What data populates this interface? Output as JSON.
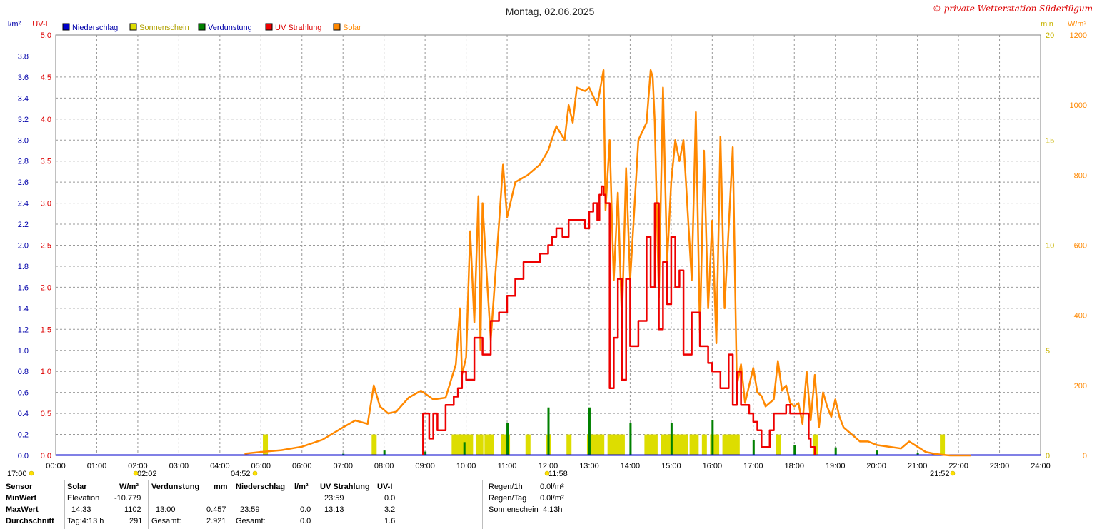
{
  "colors": {
    "niederschlag": "#0000cc",
    "sonnenschein": "#dddd00",
    "verdunstung": "#008000",
    "uv": "#ee0000",
    "solar": "#ff8800",
    "grid": "#999999",
    "copyright": "#dd0000"
  },
  "chart_data": {
    "type": "line",
    "title": "Montag, 02.06.2025",
    "copyright": "© private Wetterstation Süderlügum",
    "legend": [
      "Niederschlag",
      "Sonnenschein",
      "Verdunstung",
      "UV Strahlung",
      "Solar"
    ],
    "axes": {
      "left1_unit": "l/m²",
      "left2_unit": "UV-I",
      "right1_unit": "min",
      "right2_unit": "W/m²",
      "left1_ticks": [
        "0.0",
        "0.2",
        "0.4",
        "0.6",
        "0.8",
        "1.0",
        "1.2",
        "1.4",
        "1.6",
        "1.8",
        "2.0",
        "2.2",
        "2.4",
        "2.6",
        "2.8",
        "3.0",
        "3.2",
        "3.4",
        "3.6",
        "3.8"
      ],
      "left2_ticks": [
        "0.0",
        "0.5",
        "1.0",
        "1.5",
        "2.0",
        "2.5",
        "3.0",
        "3.5",
        "4.0",
        "4.5",
        "5.0"
      ],
      "right1_ticks": [
        "0",
        "5",
        "10",
        "15",
        "20"
      ],
      "right2_ticks": [
        "0",
        "200",
        "400",
        "600",
        "800",
        "1000",
        "1200"
      ],
      "x_ticks": [
        "00:00",
        "01:00",
        "02:00",
        "03:00",
        "04:00",
        "05:00",
        "06:00",
        "07:00",
        "08:00",
        "09:00",
        "10:00",
        "11:00",
        "12:00",
        "13:00",
        "14:00",
        "15:00",
        "16:00",
        "17:00",
        "18:00",
        "19:00",
        "20:00",
        "21:00",
        "22:00",
        "23:00",
        "24:00"
      ],
      "uv_ylim": [
        0,
        5
      ],
      "solar_ylim": [
        0,
        1200
      ],
      "sunshine_ylim": [
        0,
        20
      ],
      "rain_ylim": [
        0,
        4
      ]
    },
    "time_markers": [
      {
        "label": "17:00",
        "time": "00:00"
      },
      {
        "label": "02:02",
        "time": "02:02"
      },
      {
        "label": "04:52",
        "time": "04:52"
      },
      {
        "label": "11:58",
        "time": "11:58"
      },
      {
        "label": "21:52",
        "time": "21:52"
      }
    ],
    "solar": {
      "x": [
        4.6,
        5.0,
        5.5,
        6.0,
        6.5,
        7.0,
        7.3,
        7.6,
        7.75,
        7.9,
        8.1,
        8.3,
        8.6,
        8.9,
        9.2,
        9.5,
        9.75,
        9.85,
        9.9,
        10.0,
        10.1,
        10.2,
        10.3,
        10.35,
        10.4,
        10.5,
        10.6,
        10.8,
        10.9,
        11.0,
        11.2,
        11.5,
        11.8,
        12.0,
        12.2,
        12.4,
        12.5,
        12.6,
        12.7,
        12.9,
        13.0,
        13.2,
        13.35,
        13.4,
        13.5,
        13.6,
        13.7,
        13.8,
        13.9,
        14.0,
        14.2,
        14.4,
        14.5,
        14.55,
        14.6,
        14.7,
        14.8,
        14.9,
        15.0,
        15.1,
        15.2,
        15.3,
        15.5,
        15.6,
        15.7,
        15.8,
        15.9,
        16.0,
        16.1,
        16.2,
        16.3,
        16.5,
        16.6,
        16.7,
        16.8,
        17.0,
        17.1,
        17.2,
        17.3,
        17.5,
        17.6,
        17.7,
        17.8,
        17.9,
        18.0,
        18.1,
        18.2,
        18.3,
        18.4,
        18.5,
        18.6,
        18.7,
        18.8,
        18.9,
        19.0,
        19.1,
        19.2,
        19.4,
        19.6,
        19.8,
        20.0,
        20.3,
        20.6,
        20.8,
        21.0,
        21.2,
        21.4,
        21.6,
        21.8,
        22.0,
        22.3
      ],
      "y": [
        5,
        10,
        15,
        25,
        45,
        80,
        100,
        90,
        200,
        140,
        120,
        125,
        165,
        185,
        160,
        165,
        260,
        420,
        230,
        280,
        640,
        380,
        740,
        300,
        720,
        520,
        330,
        660,
        830,
        680,
        780,
        800,
        830,
        870,
        940,
        900,
        1000,
        950,
        1050,
        1040,
        1050,
        1000,
        1100,
        700,
        900,
        500,
        750,
        380,
        820,
        500,
        900,
        950,
        1100,
        1080,
        950,
        450,
        1050,
        550,
        780,
        900,
        840,
        900,
        500,
        980,
        350,
        870,
        420,
        670,
        320,
        910,
        420,
        880,
        200,
        260,
        150,
        250,
        180,
        170,
        140,
        160,
        270,
        185,
        200,
        150,
        140,
        150,
        90,
        240,
        100,
        230,
        80,
        180,
        140,
        110,
        160,
        110,
        80,
        60,
        40,
        40,
        30,
        25,
        20,
        40,
        25,
        10,
        5,
        2,
        0,
        0,
        0
      ],
      "ymax": 1102
    },
    "uv": {
      "x": [
        8.95,
        9.0,
        9.1,
        9.2,
        9.3,
        9.5,
        9.7,
        9.8,
        9.9,
        10.0,
        10.2,
        10.4,
        10.6,
        10.8,
        11.0,
        11.2,
        11.4,
        11.6,
        11.8,
        12.0,
        12.1,
        12.2,
        12.35,
        12.5,
        12.7,
        12.9,
        13.0,
        13.1,
        13.2,
        13.25,
        13.3,
        13.35,
        13.4,
        13.5,
        13.6,
        13.7,
        13.8,
        13.9,
        14.0,
        14.2,
        14.4,
        14.5,
        14.6,
        14.7,
        14.8,
        14.9,
        15.0,
        15.1,
        15.2,
        15.3,
        15.5,
        15.7,
        15.9,
        16.0,
        16.2,
        16.4,
        16.5,
        16.6,
        16.7,
        16.8,
        16.9,
        17.0,
        17.1,
        17.2,
        17.4,
        17.5,
        17.6,
        17.7,
        17.8,
        17.9,
        18.0,
        18.2,
        18.3,
        18.35,
        18.4,
        18.5
      ],
      "y": [
        0.5,
        0.5,
        0.2,
        0.5,
        0.3,
        0.6,
        0.7,
        0.8,
        1.0,
        0.9,
        1.4,
        1.2,
        1.6,
        1.7,
        1.9,
        2.1,
        2.3,
        2.3,
        2.4,
        2.5,
        2.6,
        2.7,
        2.6,
        2.8,
        2.8,
        2.7,
        2.9,
        3.0,
        2.8,
        3.1,
        3.2,
        3.1,
        3.0,
        0.8,
        1.4,
        2.1,
        0.9,
        2.1,
        1.3,
        1.6,
        2.6,
        2.0,
        3.0,
        1.5,
        2.3,
        1.8,
        2.6,
        2.0,
        2.2,
        1.2,
        1.7,
        1.3,
        1.1,
        1.0,
        0.8,
        1.2,
        0.6,
        1.0,
        0.6,
        0.6,
        0.5,
        0.4,
        0.3,
        0.1,
        0.3,
        0.5,
        0.5,
        0.5,
        0.6,
        0.5,
        0.5,
        0.5,
        0.5,
        0.2,
        0.1,
        0.0
      ],
      "ymax": 3.2
    },
    "sunshine": {
      "x": [
        5.1,
        7.75,
        9.7,
        9.75,
        9.8,
        9.85,
        9.9,
        10.0,
        10.1,
        10.3,
        10.35,
        10.5,
        10.6,
        10.9,
        10.95,
        11.0,
        11.5,
        12.0,
        12.5,
        13.0,
        13.1,
        13.2,
        13.3,
        13.5,
        13.55,
        13.6,
        13.7,
        13.8,
        14.4,
        14.5,
        14.55,
        14.6,
        14.8,
        14.9,
        15.0,
        15.1,
        15.2,
        15.3,
        15.35,
        15.5,
        15.55,
        15.6,
        15.8,
        16.0,
        16.1,
        16.3,
        16.4,
        16.5,
        16.55,
        16.6,
        17.6,
        18.5,
        21.6
      ],
      "y": [
        1,
        1,
        1,
        1,
        1,
        1,
        1,
        1,
        1,
        1,
        1,
        1,
        1,
        1,
        1,
        1,
        1,
        1,
        1,
        1,
        1,
        1,
        1,
        1,
        1,
        1,
        1,
        1,
        1,
        1,
        1,
        1,
        1,
        1,
        1,
        1,
        1,
        1,
        1,
        1,
        1,
        1,
        1,
        1,
        1,
        1,
        1,
        1,
        1,
        1,
        1,
        1,
        1
      ]
    },
    "verdunstung": {
      "x": [
        7.0,
        8.0,
        9.0,
        9.95,
        11.0,
        12.0,
        13.0,
        14.0,
        15.0,
        16.0,
        17.0,
        18.0,
        19.0,
        20.0,
        21.0
      ],
      "y": [
        0.01,
        0.04,
        0.03,
        0.12,
        0.3,
        0.45,
        0.45,
        0.3,
        0.3,
        0.33,
        0.14,
        0.09,
        0.07,
        0.04,
        0.02
      ]
    },
    "niederschlag": {
      "x": [
        0,
        24
      ],
      "y": [
        0.0,
        0.0
      ]
    }
  },
  "stats": {
    "sensor_label": "Sensor",
    "minwert_label": "MinWert",
    "maxwert_label": "MaxWert",
    "durchschnitt_label": "Durchschnitt",
    "solar": {
      "header": "Solar",
      "unit": "W/m²",
      "min_time": "Elevation",
      "min_val": "-10.779",
      "max_time": "14:33",
      "max_val": "1102",
      "avg_time": "Tag:4:13 h",
      "avg_val": "291"
    },
    "verdunstung": {
      "header": "Verdunstung",
      "unit": "mm",
      "max_time": "13:00",
      "max_val": "0.457",
      "avg_time": "Gesamt:",
      "avg_val": "2.921"
    },
    "niederschlag": {
      "header": "Niederschlag",
      "unit": "l/m²",
      "max_time": "23:59",
      "max_val": "0.0",
      "avg_time": "Gesamt:",
      "avg_val": "0.0"
    },
    "uv": {
      "header": "UV Strahlung",
      "unit": "UV-I",
      "min_time": "23:59",
      "min_val": "0.0",
      "max_time": "13:13",
      "max_val": "3.2",
      "avg_val": "1.6"
    },
    "rain": {
      "regen1h_label": "Regen/1h",
      "regen1h_val": "0.0l/m²",
      "regentag_label": "Regen/Tag",
      "regentag_val": "0.0l/m²",
      "sonnenschein_label": "Sonnenschein",
      "sonnenschein_val": "4:13h"
    }
  }
}
